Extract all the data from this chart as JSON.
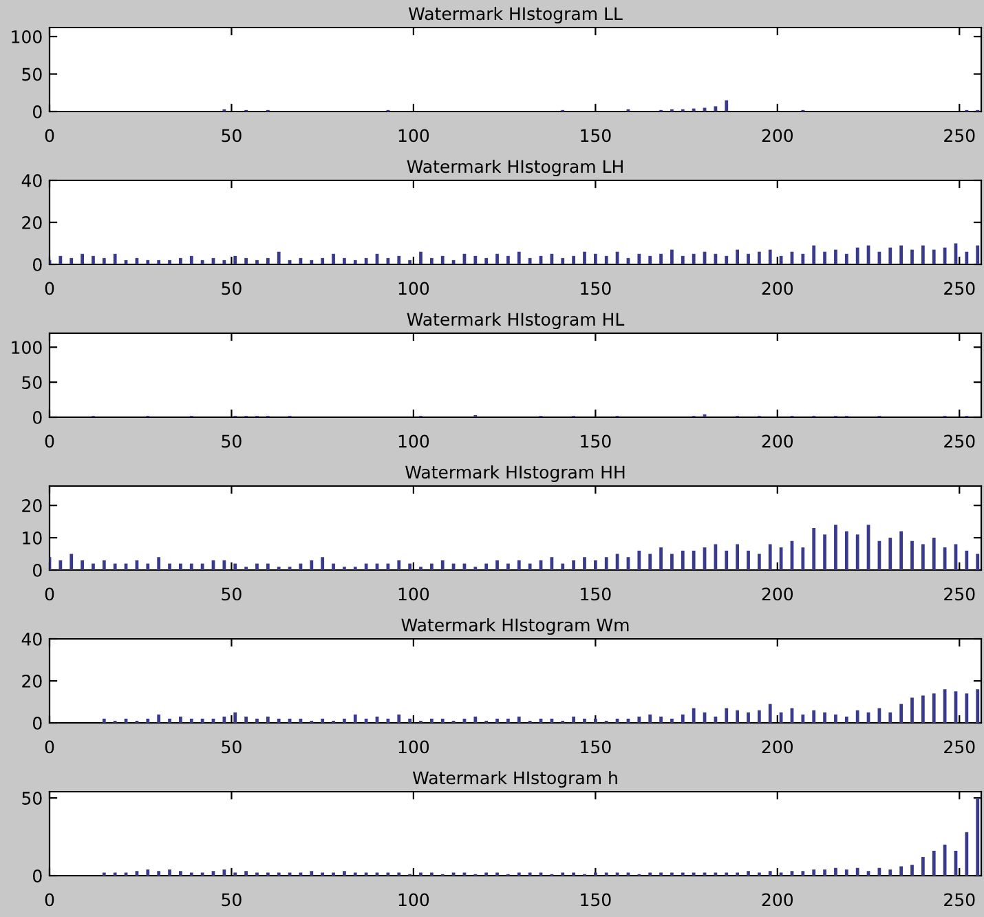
{
  "chart_data": [
    {
      "type": "bar",
      "title": "Watermark HIstogram LL",
      "color": "#3a3a8c",
      "xlim": [
        0,
        256
      ],
      "xticks": [
        0,
        50,
        100,
        150,
        200,
        250
      ],
      "ylim": [
        0,
        112
      ],
      "yticks": [
        0,
        50,
        100
      ],
      "x": [
        0,
        3,
        6,
        9,
        12,
        15,
        18,
        21,
        24,
        27,
        30,
        33,
        36,
        39,
        42,
        45,
        48,
        51,
        54,
        57,
        60,
        63,
        66,
        69,
        72,
        75,
        78,
        81,
        84,
        87,
        90,
        93,
        96,
        99,
        102,
        105,
        108,
        111,
        114,
        117,
        120,
        123,
        126,
        129,
        132,
        135,
        138,
        141,
        144,
        147,
        150,
        153,
        156,
        159,
        162,
        165,
        168,
        171,
        174,
        177,
        180,
        183,
        186,
        189,
        192,
        195,
        198,
        201,
        204,
        207,
        210,
        213,
        216,
        219,
        222,
        225,
        228,
        231,
        234,
        237,
        240,
        243,
        246,
        249,
        252,
        255
      ],
      "values": [
        0,
        0,
        0,
        0,
        0,
        0,
        0,
        0,
        0,
        0,
        0,
        0,
        0,
        0,
        0,
        0,
        3,
        0,
        2,
        0,
        2,
        0,
        0,
        0,
        0,
        0,
        0,
        0,
        0,
        0,
        0,
        2,
        0,
        0,
        0,
        0,
        0,
        0,
        0,
        0,
        0,
        0,
        0,
        0,
        0,
        0,
        0,
        2,
        0,
        0,
        0,
        0,
        0,
        3,
        0,
        0,
        2,
        3,
        3,
        4,
        5,
        7,
        15,
        0,
        0,
        0,
        0,
        0,
        0,
        2,
        0,
        0,
        0,
        0,
        0,
        0,
        0,
        0,
        0,
        0,
        0,
        0,
        0,
        0,
        2,
        2
      ]
    },
    {
      "type": "bar",
      "title": "Watermark HIstogram LH",
      "color": "#3a3a8c",
      "xlim": [
        0,
        256
      ],
      "xticks": [
        0,
        50,
        100,
        150,
        200,
        250
      ],
      "ylim": [
        0,
        40
      ],
      "yticks": [
        0,
        20,
        40
      ],
      "x": [
        0,
        3,
        6,
        9,
        12,
        15,
        18,
        21,
        24,
        27,
        30,
        33,
        36,
        39,
        42,
        45,
        48,
        51,
        54,
        57,
        60,
        63,
        66,
        69,
        72,
        75,
        78,
        81,
        84,
        87,
        90,
        93,
        96,
        99,
        102,
        105,
        108,
        111,
        114,
        117,
        120,
        123,
        126,
        129,
        132,
        135,
        138,
        141,
        144,
        147,
        150,
        153,
        156,
        159,
        162,
        165,
        168,
        171,
        174,
        177,
        180,
        183,
        186,
        189,
        192,
        195,
        198,
        201,
        204,
        207,
        210,
        213,
        216,
        219,
        222,
        225,
        228,
        231,
        234,
        237,
        240,
        243,
        246,
        249,
        252,
        255
      ],
      "values": [
        2,
        4,
        3,
        5,
        4,
        3,
        5,
        2,
        3,
        2,
        2,
        2,
        3,
        4,
        2,
        3,
        2,
        4,
        3,
        2,
        3,
        6,
        2,
        3,
        2,
        3,
        5,
        3,
        2,
        3,
        5,
        3,
        4,
        2,
        6,
        3,
        4,
        2,
        5,
        4,
        3,
        5,
        4,
        6,
        3,
        4,
        5,
        3,
        4,
        6,
        5,
        4,
        6,
        3,
        5,
        4,
        5,
        7,
        4,
        5,
        6,
        5,
        4,
        7,
        5,
        6,
        7,
        4,
        6,
        5,
        9,
        6,
        7,
        5,
        8,
        9,
        6,
        8,
        9,
        7,
        9,
        7,
        8,
        10,
        6,
        9
      ]
    },
    {
      "type": "bar",
      "title": "Watermark HIstogram HL",
      "color": "#3a3a8c",
      "xlim": [
        0,
        256
      ],
      "xticks": [
        0,
        50,
        100,
        150,
        200,
        250
      ],
      "ylim": [
        0,
        120
      ],
      "yticks": [
        0,
        50,
        100
      ],
      "x": [
        0,
        3,
        6,
        9,
        12,
        15,
        18,
        21,
        24,
        27,
        30,
        33,
        36,
        39,
        42,
        45,
        48,
        51,
        54,
        57,
        60,
        63,
        66,
        69,
        72,
        75,
        78,
        81,
        84,
        87,
        90,
        93,
        96,
        99,
        102,
        105,
        108,
        111,
        114,
        117,
        120,
        123,
        126,
        129,
        132,
        135,
        138,
        141,
        144,
        147,
        150,
        153,
        156,
        159,
        162,
        165,
        168,
        171,
        174,
        177,
        180,
        183,
        186,
        189,
        192,
        195,
        198,
        201,
        204,
        207,
        210,
        213,
        216,
        219,
        222,
        225,
        228,
        231,
        234,
        237,
        240,
        243,
        246,
        249,
        252,
        255
      ],
      "values": [
        0,
        0,
        0,
        0,
        2,
        0,
        0,
        0,
        0,
        2,
        0,
        0,
        0,
        2,
        0,
        0,
        0,
        2,
        2,
        2,
        2,
        0,
        2,
        0,
        0,
        0,
        0,
        0,
        0,
        0,
        0,
        0,
        0,
        0,
        2,
        0,
        0,
        0,
        0,
        3,
        0,
        0,
        0,
        0,
        0,
        2,
        0,
        0,
        2,
        0,
        0,
        0,
        2,
        0,
        0,
        0,
        0,
        0,
        0,
        2,
        4,
        0,
        0,
        2,
        0,
        2,
        0,
        0,
        2,
        0,
        2,
        0,
        2,
        2,
        0,
        0,
        2,
        0,
        0,
        0,
        0,
        0,
        2,
        0,
        2,
        0
      ]
    },
    {
      "type": "bar",
      "title": "Watermark HIstogram HH",
      "color": "#3a3a8c",
      "xlim": [
        0,
        256
      ],
      "xticks": [
        0,
        50,
        100,
        150,
        200,
        250
      ],
      "ylim": [
        0,
        26
      ],
      "yticks": [
        0,
        10,
        20
      ],
      "x": [
        0,
        3,
        6,
        9,
        12,
        15,
        18,
        21,
        24,
        27,
        30,
        33,
        36,
        39,
        42,
        45,
        48,
        51,
        54,
        57,
        60,
        63,
        66,
        69,
        72,
        75,
        78,
        81,
        84,
        87,
        90,
        93,
        96,
        99,
        102,
        105,
        108,
        111,
        114,
        117,
        120,
        123,
        126,
        129,
        132,
        135,
        138,
        141,
        144,
        147,
        150,
        153,
        156,
        159,
        162,
        165,
        168,
        171,
        174,
        177,
        180,
        183,
        186,
        189,
        192,
        195,
        198,
        201,
        204,
        207,
        210,
        213,
        216,
        219,
        222,
        225,
        228,
        231,
        234,
        237,
        240,
        243,
        246,
        249,
        252,
        255
      ],
      "values": [
        4,
        3,
        5,
        3,
        2,
        3,
        2,
        2,
        3,
        2,
        4,
        2,
        2,
        2,
        2,
        3,
        3,
        2,
        1,
        2,
        2,
        1,
        1,
        2,
        3,
        4,
        2,
        1,
        1,
        2,
        2,
        2,
        3,
        2,
        1,
        2,
        3,
        2,
        2,
        1,
        2,
        3,
        2,
        3,
        2,
        3,
        4,
        2,
        3,
        4,
        3,
        4,
        5,
        4,
        6,
        5,
        7,
        5,
        6,
        6,
        7,
        8,
        6,
        8,
        6,
        5,
        8,
        7,
        9,
        7,
        13,
        11,
        14,
        12,
        11,
        14,
        9,
        10,
        12,
        9,
        8,
        10,
        7,
        8,
        6,
        5
      ]
    },
    {
      "type": "bar",
      "title": "Watermark HIstogram Wm",
      "color": "#3a3a8c",
      "xlim": [
        0,
        256
      ],
      "xticks": [
        0,
        50,
        100,
        150,
        200,
        250
      ],
      "ylim": [
        0,
        40
      ],
      "yticks": [
        0,
        20,
        40
      ],
      "x": [
        0,
        3,
        6,
        9,
        12,
        15,
        18,
        21,
        24,
        27,
        30,
        33,
        36,
        39,
        42,
        45,
        48,
        51,
        54,
        57,
        60,
        63,
        66,
        69,
        72,
        75,
        78,
        81,
        84,
        87,
        90,
        93,
        96,
        99,
        102,
        105,
        108,
        111,
        114,
        117,
        120,
        123,
        126,
        129,
        132,
        135,
        138,
        141,
        144,
        147,
        150,
        153,
        156,
        159,
        162,
        165,
        168,
        171,
        174,
        177,
        180,
        183,
        186,
        189,
        192,
        195,
        198,
        201,
        204,
        207,
        210,
        213,
        216,
        219,
        222,
        225,
        228,
        231,
        234,
        237,
        240,
        243,
        246,
        249,
        252,
        255
      ],
      "values": [
        0,
        0,
        0,
        0,
        0,
        2,
        1,
        2,
        1,
        2,
        4,
        2,
        3,
        2,
        2,
        2,
        3,
        5,
        3,
        2,
        3,
        2,
        2,
        2,
        1,
        2,
        1,
        2,
        4,
        2,
        3,
        2,
        4,
        2,
        1,
        2,
        2,
        1,
        2,
        3,
        1,
        2,
        2,
        3,
        1,
        2,
        2,
        1,
        3,
        2,
        2,
        1,
        2,
        2,
        3,
        4,
        3,
        2,
        4,
        7,
        5,
        3,
        7,
        6,
        5,
        6,
        9,
        5,
        7,
        4,
        6,
        5,
        4,
        3,
        6,
        5,
        7,
        5,
        9,
        12,
        13,
        14,
        16,
        15,
        14,
        16
      ]
    },
    {
      "type": "bar",
      "title": "Watermark HIstogram h",
      "color": "#3a3a8c",
      "xlim": [
        0,
        256
      ],
      "xticks": [
        0,
        50,
        100,
        150,
        200,
        250
      ],
      "ylim": [
        0,
        54
      ],
      "yticks": [
        0,
        50
      ],
      "x": [
        0,
        3,
        6,
        9,
        12,
        15,
        18,
        21,
        24,
        27,
        30,
        33,
        36,
        39,
        42,
        45,
        48,
        51,
        54,
        57,
        60,
        63,
        66,
        69,
        72,
        75,
        78,
        81,
        84,
        87,
        90,
        93,
        96,
        99,
        102,
        105,
        108,
        111,
        114,
        117,
        120,
        123,
        126,
        129,
        132,
        135,
        138,
        141,
        144,
        147,
        150,
        153,
        156,
        159,
        162,
        165,
        168,
        171,
        174,
        177,
        180,
        183,
        186,
        189,
        192,
        195,
        198,
        201,
        204,
        207,
        210,
        213,
        216,
        219,
        222,
        225,
        228,
        231,
        234,
        237,
        240,
        243,
        246,
        249,
        252,
        255
      ],
      "values": [
        0,
        0,
        0,
        0,
        0,
        2,
        2,
        2,
        3,
        4,
        3,
        4,
        3,
        2,
        2,
        3,
        4,
        2,
        3,
        2,
        2,
        2,
        2,
        2,
        3,
        2,
        2,
        3,
        2,
        2,
        2,
        2,
        2,
        1,
        2,
        2,
        1,
        2,
        2,
        1,
        2,
        2,
        1,
        2,
        2,
        2,
        1,
        2,
        2,
        1,
        2,
        2,
        2,
        2,
        1,
        2,
        2,
        2,
        2,
        2,
        2,
        2,
        2,
        2,
        3,
        2,
        3,
        2,
        3,
        3,
        4,
        4,
        5,
        4,
        5,
        3,
        5,
        4,
        6,
        7,
        12,
        16,
        20,
        16,
        28,
        50
      ]
    }
  ]
}
